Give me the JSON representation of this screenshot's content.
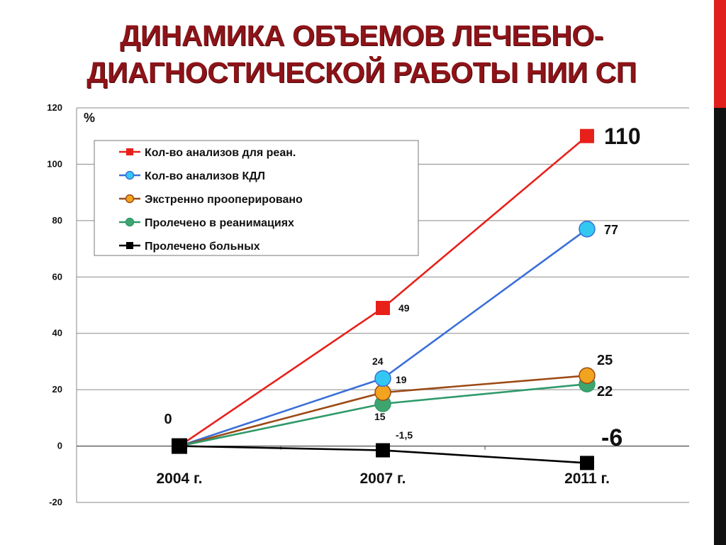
{
  "slide": {
    "title_line1": "Динамика объемов лечебно-",
    "title_line2": "диагностической работы  НИИ СП",
    "accent_colors": [
      "#e0201c",
      "#111111"
    ]
  },
  "chart_data": {
    "type": "line",
    "ylabel": "%",
    "ylim": [
      -20,
      120
    ],
    "yticks": [
      -20,
      0,
      20,
      40,
      60,
      80,
      100,
      120
    ],
    "categories": [
      "2004 г.",
      "2007 г.",
      "2011 г."
    ],
    "grid": true,
    "legend_position": "top-left",
    "series": [
      {
        "name": "Кол-во анализов для реан.",
        "color": "#e8201a",
        "marker": "square",
        "values": [
          0,
          49,
          110
        ],
        "labels": [
          null,
          "49",
          "110"
        ]
      },
      {
        "name": "Кол-во анализов КДЛ",
        "color": "#3a6fd8",
        "marker": "circle",
        "fill": "#33c8f2",
        "values": [
          0,
          24,
          77
        ],
        "labels": [
          null,
          "24",
          "77"
        ]
      },
      {
        "name": "Экстренно прооперировано",
        "color": "#9c4a16",
        "marker": "circle",
        "fill": "#f2a41f",
        "values": [
          0,
          19,
          25
        ],
        "labels": [
          null,
          "19",
          "25"
        ]
      },
      {
        "name": "Пролечено в реанимациях",
        "color": "#2f9a6b",
        "marker": "circle",
        "fill": "#3fa56e",
        "values": [
          0,
          15,
          22
        ],
        "labels": [
          null,
          "15",
          "22"
        ]
      },
      {
        "name": "Пролечено больных",
        "color": "#000000",
        "marker": "square",
        "values": [
          0,
          -1.5,
          -6
        ],
        "labels": [
          "0",
          "-1,5",
          "-6"
        ]
      }
    ]
  }
}
